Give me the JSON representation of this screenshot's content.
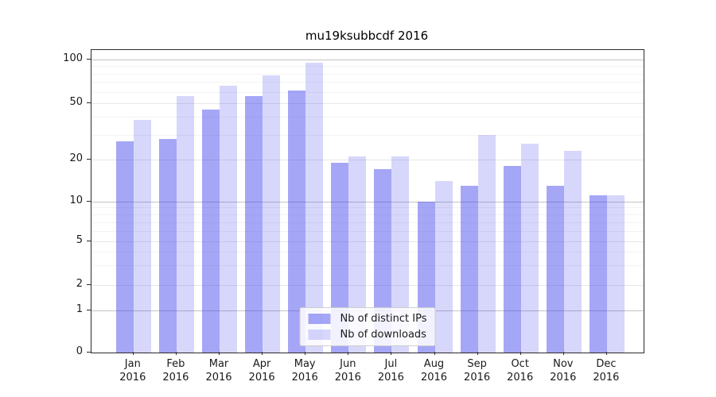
{
  "title": "mu19ksubbcdf 2016",
  "legend": {
    "items": [
      {
        "label": "Nb of distinct IPs",
        "color": "#a6a6f3",
        "fill": "rgba(68,68,238,0.475)"
      },
      {
        "label": "Nb of downloads",
        "color": "#d8d8f8",
        "fill": "rgba(68,68,238,0.21)"
      }
    ]
  },
  "y_axis": {
    "tick_labels": [
      "100",
      "50",
      "20",
      "10",
      "5",
      "2",
      "1",
      "0"
    ]
  },
  "x_axis": {
    "year": "2016",
    "months": [
      "Jan",
      "Feb",
      "Mar",
      "Apr",
      "May",
      "Jun",
      "Jul",
      "Aug",
      "Sep",
      "Oct",
      "Nov",
      "Dec"
    ]
  },
  "chart_data": {
    "type": "bar",
    "title": "mu19ksubbcdf 2016",
    "categories": [
      "Jan 2016",
      "Feb 2016",
      "Mar 2016",
      "Apr 2016",
      "May 2016",
      "Jun 2016",
      "Jul 2016",
      "Aug 2016",
      "Sep 2016",
      "Oct 2016",
      "Nov 2016",
      "Dec 2016"
    ],
    "series": [
      {
        "name": "Nb of distinct IPs",
        "color": "#a6a6f3",
        "values": [
          27,
          28,
          45,
          56,
          61,
          19,
          17,
          10,
          13,
          18,
          13,
          11
        ]
      },
      {
        "name": "Nb of downloads",
        "color": "#d8d8f8",
        "values": [
          38,
          56,
          66,
          78,
          95,
          21,
          21,
          14,
          30,
          26,
          23,
          11
        ]
      }
    ],
    "yscale": "log-like with linear segment below 1",
    "y_ticks": [
      0,
      1,
      2,
      5,
      10,
      20,
      50,
      100
    ],
    "ylim": [
      0,
      110
    ],
    "grid": true,
    "legend_position": "lower center"
  },
  "grid": {
    "decade_ticks": [
      1,
      10,
      100
    ],
    "mid_ticks": [
      2,
      5,
      20,
      50
    ],
    "minor_ticks": [
      3,
      4,
      6,
      7,
      8,
      9,
      30,
      40,
      60,
      70,
      80,
      90
    ],
    "decade_color": "#c3c3c3",
    "mid_color": "#e7e7e7",
    "minor_color": "#f3f3f3"
  }
}
